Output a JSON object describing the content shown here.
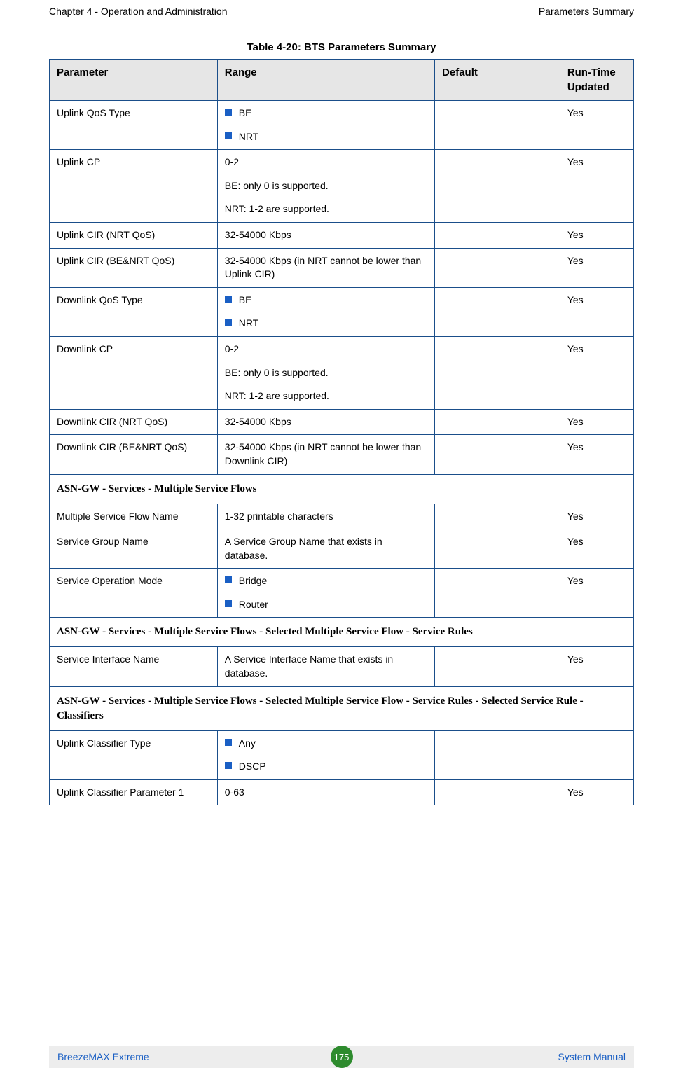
{
  "header": {
    "left": "Chapter 4 - Operation and Administration",
    "right": "Parameters Summary"
  },
  "caption": "Table 4-20: BTS Parameters Summary",
  "columns": {
    "param": "Parameter",
    "range": "Range",
    "default": "Default",
    "runtime": "Run-Time Updated"
  },
  "rows": {
    "r1": {
      "param": "Uplink QoS Type",
      "range_items": [
        "BE",
        "NRT"
      ],
      "default": "",
      "runtime": "Yes"
    },
    "r2": {
      "param": "Uplink CP",
      "range_lines": [
        "0-2",
        "BE: only 0 is supported.",
        "NRT: 1-2 are supported."
      ],
      "default": "",
      "runtime": "Yes"
    },
    "r3": {
      "param": "Uplink CIR (NRT QoS)",
      "range": "32-54000 Kbps",
      "default": "",
      "runtime": "Yes"
    },
    "r4": {
      "param": "Uplink CIR (BE&NRT QoS)",
      "range": "32-54000 Kbps (in NRT cannot be lower than Uplink CIR)",
      "default": "",
      "runtime": "Yes"
    },
    "r5": {
      "param": "Downlink QoS Type",
      "range_items": [
        "BE",
        "NRT"
      ],
      "default": "",
      "runtime": "Yes"
    },
    "r6": {
      "param": "Downlink CP",
      "range_lines": [
        "0-2",
        "BE: only 0 is supported.",
        "NRT: 1-2 are supported."
      ],
      "default": "",
      "runtime": "Yes"
    },
    "r7": {
      "param": "Downlink CIR (NRT QoS)",
      "range": "32-54000 Kbps",
      "default": "",
      "runtime": "Yes"
    },
    "r8": {
      "param": "Downlink CIR (BE&NRT QoS)",
      "range": "32-54000 Kbps (in NRT cannot be lower than Downlink CIR)",
      "default": "",
      "runtime": "Yes"
    },
    "s1": {
      "title": "ASN-GW - Services - Multiple Service Flows"
    },
    "r9": {
      "param": "Multiple Service Flow Name",
      "range": "1-32 printable characters",
      "default": "",
      "runtime": "Yes"
    },
    "r10": {
      "param": "Service Group Name",
      "range": "A Service Group Name that exists in database.",
      "default": "",
      "runtime": "Yes"
    },
    "r11": {
      "param": "Service Operation Mode",
      "range_items": [
        "Bridge",
        "Router"
      ],
      "default": "",
      "runtime": "Yes"
    },
    "s2": {
      "title": "ASN-GW - Services - Multiple Service Flows - Selected Multiple Service Flow - Service Rules"
    },
    "r12": {
      "param": "Service Interface Name",
      "range": "A Service Interface Name that exists in database.",
      "default": "",
      "runtime": "Yes"
    },
    "s3": {
      "title": "ASN-GW - Services - Multiple Service Flows - Selected Multiple Service Flow - Service Rules - Selected Service Rule - Classifiers"
    },
    "r13": {
      "param": "Uplink Classifier Type",
      "range_items": [
        "Any",
        "DSCP"
      ],
      "default": "",
      "runtime": ""
    },
    "r14": {
      "param": "Uplink Classifier Parameter 1",
      "range": "0-63",
      "default": "",
      "runtime": "Yes"
    }
  },
  "footer": {
    "left": "BreezeMAX Extreme",
    "page": "175",
    "right": "System Manual"
  },
  "colors": {
    "border": "#1a4e8a",
    "header_bg": "#e6e6e6",
    "bullet": "#1a5fc4",
    "footer_bg": "#ededed",
    "footer_text": "#1a5fc4",
    "badge_bg": "#2e8b2e"
  }
}
